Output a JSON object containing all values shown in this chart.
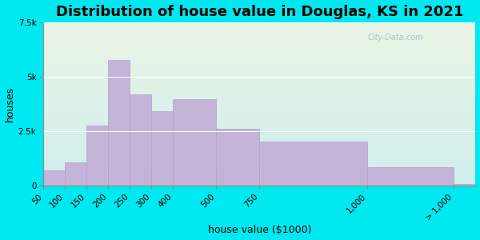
{
  "title": "Distribution of house value in Douglas, KS in 2021",
  "xlabel": "house value ($1000)",
  "ylabel": "houses",
  "bar_color": "#c4b4d8",
  "bar_edge_color": "#b0a0c8",
  "background_outer": "#00e8f0",
  "background_inner_top": "#eaf5e4",
  "background_inner_bottom": "#d0eeee",
  "tick_labels": [
    "50",
    "100",
    "150",
    "200",
    "250",
    "300",
    "400",
    "500",
    "750",
    "1,000",
    "> 1,000"
  ],
  "values": [
    700,
    1050,
    2750,
    5750,
    4200,
    3400,
    3950,
    2600,
    2000,
    850,
    80
  ],
  "bar_edges": [
    0,
    1,
    2,
    3,
    4,
    5,
    6,
    8,
    10,
    15,
    19,
    20
  ],
  "ylim": [
    0,
    7500
  ],
  "yticks": [
    0,
    2500,
    5000,
    7500
  ],
  "ytick_labels": [
    "0",
    "2.5k",
    "5k",
    "7.5k"
  ],
  "title_fontsize": 13,
  "axis_fontsize": 9,
  "tick_fontsize": 7.5
}
